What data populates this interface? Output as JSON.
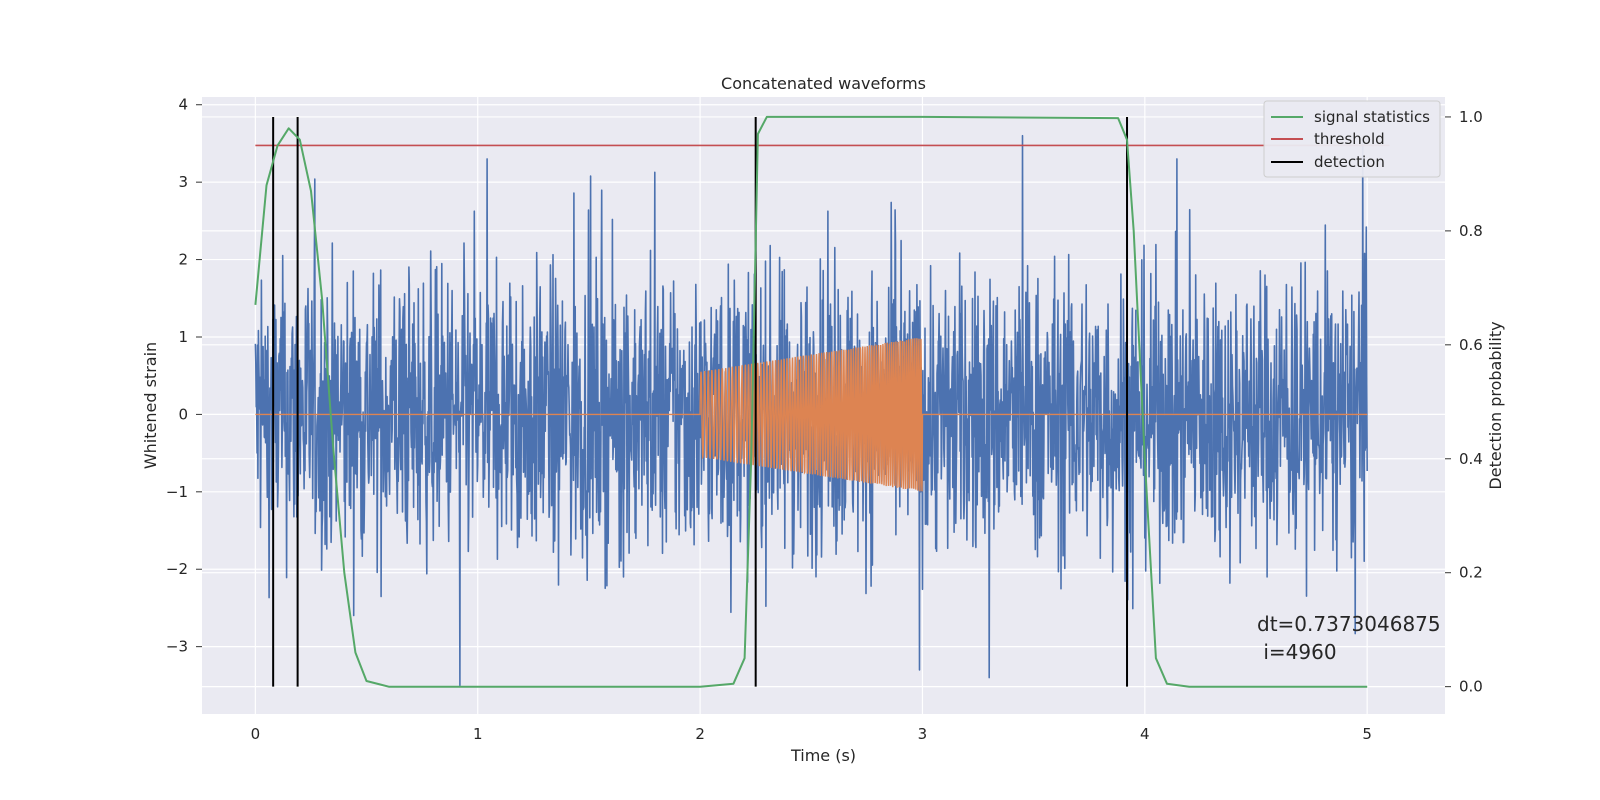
{
  "chart_data": {
    "type": "line",
    "title": "Concatenated waveforms",
    "xlabel": "Time (s)",
    "ylabel": "Whitened strain",
    "y2label": "Detection probability",
    "xlim": [
      -0.24,
      5.35
    ],
    "ylim": [
      -3.87,
      4.1
    ],
    "y2lim": [
      -0.048,
      1.035
    ],
    "x_ticks": [
      0,
      1,
      2,
      3,
      4,
      5
    ],
    "y_ticks": [
      -3,
      -2,
      -1,
      0,
      1,
      2,
      3,
      4
    ],
    "y2_ticks": [
      0.0,
      0.2,
      0.4,
      0.6,
      0.8,
      1.0
    ],
    "x_tick_labels": [
      "0",
      "1",
      "2",
      "3",
      "4",
      "5"
    ],
    "y_tick_labels": [
      "−3",
      "−2",
      "−1",
      "0",
      "1",
      "2",
      "3",
      "4"
    ],
    "y2_tick_labels": [
      "0.0",
      "0.2",
      "0.4",
      "0.6",
      "0.8",
      "1.0"
    ],
    "grid": true,
    "legend_position": "top-right",
    "legend": [
      "signal statistics",
      "threshold",
      "detection"
    ],
    "series": [
      {
        "name": "whitened strain noise",
        "axis": "left",
        "color": "#4c72b0",
        "x_range": [
          0,
          5
        ],
        "approx_amplitude": 3.3,
        "notes_points_sample": [
          [
            0.92,
            -3.5
          ],
          [
            3.45,
            3.6
          ],
          [
            4.98,
            3.55
          ],
          [
            3.3,
            -3.4
          ]
        ]
      },
      {
        "name": "injected signal",
        "axis": "left",
        "color": "#dd8452",
        "x_range": [
          2.0,
          3.0
        ],
        "amplitude_start": 0.55,
        "amplitude_end": 1.0
      },
      {
        "name": "signal statistics",
        "axis": "right",
        "color": "#55a868",
        "x": [
          0.0,
          0.05,
          0.1,
          0.15,
          0.2,
          0.25,
          0.3,
          0.35,
          0.4,
          0.45,
          0.5,
          0.6,
          1.0,
          2.0,
          2.15,
          2.2,
          2.23,
          2.26,
          2.3,
          2.4,
          3.0,
          3.88,
          3.92,
          3.95,
          4.0,
          4.05,
          4.1,
          4.2,
          5.0
        ],
        "values": [
          0.67,
          0.88,
          0.95,
          0.98,
          0.96,
          0.87,
          0.68,
          0.42,
          0.2,
          0.06,
          0.01,
          0.0,
          0.0,
          0.0,
          0.005,
          0.05,
          0.4,
          0.97,
          1.0,
          1.0,
          1.0,
          0.998,
          0.96,
          0.8,
          0.4,
          0.05,
          0.005,
          0.0,
          0.0
        ]
      },
      {
        "name": "threshold",
        "axis": "right",
        "color": "#c44e52",
        "x": [
          0,
          5.1
        ],
        "values": [
          0.95,
          0.95
        ]
      },
      {
        "name": "detection",
        "axis": "right",
        "color": "#000000",
        "x": [
          0.08,
          0.19,
          2.25,
          3.92
        ],
        "y_range": [
          0,
          1
        ]
      }
    ],
    "annotation": [
      "dt=0.7373046875",
      " i=4960"
    ],
    "colors": {
      "background": "#eaeaf2",
      "grid": "#ffffff",
      "noise": "#4c72b0",
      "signal": "#dd8452",
      "statistics": "#55a868",
      "threshold": "#c44e52",
      "detection": "#000000"
    }
  }
}
